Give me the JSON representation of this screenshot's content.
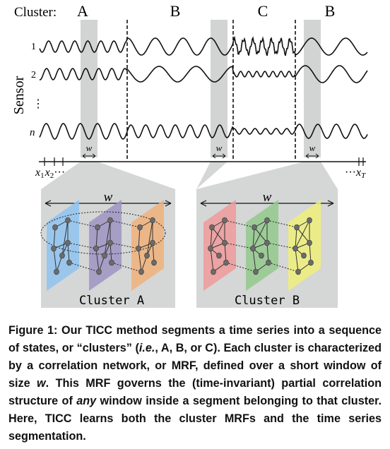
{
  "figure": {
    "cluster_heading": "Cluster:",
    "segments": [
      {
        "label": "A"
      },
      {
        "label": "B"
      },
      {
        "label": "C"
      },
      {
        "label": "B"
      }
    ],
    "sensor_axis_label": "Sensor",
    "sensor_rows": [
      "1",
      "2",
      "⋮",
      "n"
    ],
    "window_label": "w",
    "time_axis": {
      "start_labels": [
        "x",
        "1",
        "x",
        "2",
        "···"
      ],
      "end_labels": [
        "···",
        "x",
        "T"
      ]
    },
    "panels": [
      {
        "window_label": "w",
        "title": "Cluster A",
        "plane_colors": [
          "#8fc3ee",
          "#9d94c2",
          "#f0b27a"
        ]
      },
      {
        "window_label": "w",
        "title": "Cluster B",
        "plane_colors": [
          "#ef9a9a",
          "#93c98d",
          "#eef07a"
        ]
      }
    ]
  },
  "caption": {
    "label": "Figure 1:",
    "p1": " Our TICC method segments a time series into a sequence of states, or “clusters” (",
    "ie": "i.e.",
    "p2": ", A, B, or C). Each cluster is characterized by a correlation network, or MRF, defined over a short window of size ",
    "w": "w",
    "p3": ". This MRF governs the (time-invariant) partial correlation structure of ",
    "any": "any",
    "p4": " window inside a segment belonging to that cluster. Here, TICC learns both the cluster MRFs and the time series segmentation."
  }
}
